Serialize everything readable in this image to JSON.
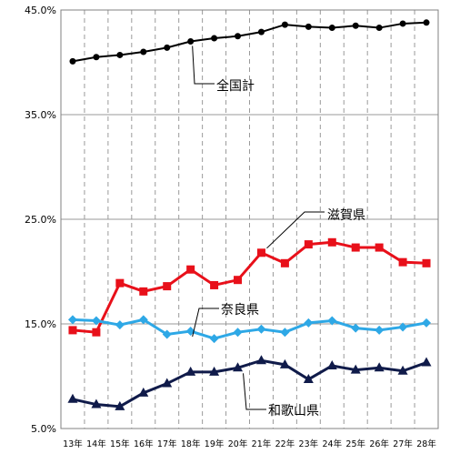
{
  "chart_data": {
    "type": "line",
    "categories": [
      "13年",
      "14年",
      "15年",
      "16年",
      "17年",
      "18年",
      "19年",
      "20年",
      "21年",
      "22年",
      "23年",
      "24年",
      "25年",
      "26年",
      "27年",
      "28年"
    ],
    "ylim": [
      5.0,
      45.0
    ],
    "yticks": [
      "5.0%",
      "15.0%",
      "25.0%",
      "35.0%",
      "45.0%"
    ],
    "ytick_values": [
      5,
      15,
      25,
      35,
      45
    ],
    "grid": "horizontal solid, vertical dashed",
    "series": [
      {
        "name": "全国計",
        "color": "#000000",
        "marker": "circle",
        "values": [
          40.1,
          40.5,
          40.7,
          41.0,
          41.4,
          42.0,
          42.3,
          42.5,
          42.9,
          43.6,
          43.4,
          43.3,
          43.5,
          43.3,
          43.7,
          43.8
        ]
      },
      {
        "name": "滋賀県",
        "color": "#e8101a",
        "marker": "square",
        "values": [
          14.4,
          14.2,
          18.9,
          18.1,
          18.6,
          20.2,
          18.7,
          19.2,
          21.8,
          20.8,
          22.6,
          22.8,
          22.3,
          22.3,
          20.9,
          20.8
        ]
      },
      {
        "name": "奈良県",
        "color": "#2ea8e6",
        "marker": "diamond",
        "values": [
          15.4,
          15.3,
          14.9,
          15.4,
          14.0,
          14.3,
          13.6,
          14.2,
          14.5,
          14.2,
          15.1,
          15.3,
          14.6,
          14.4,
          14.7,
          15.1
        ]
      },
      {
        "name": "和歌山県",
        "color": "#101b4a",
        "marker": "triangle",
        "values": [
          7.8,
          7.3,
          7.1,
          8.4,
          9.3,
          10.4,
          10.4,
          10.8,
          11.5,
          11.1,
          9.7,
          11.0,
          10.6,
          10.8,
          10.5,
          11.3
        ]
      }
    ]
  }
}
